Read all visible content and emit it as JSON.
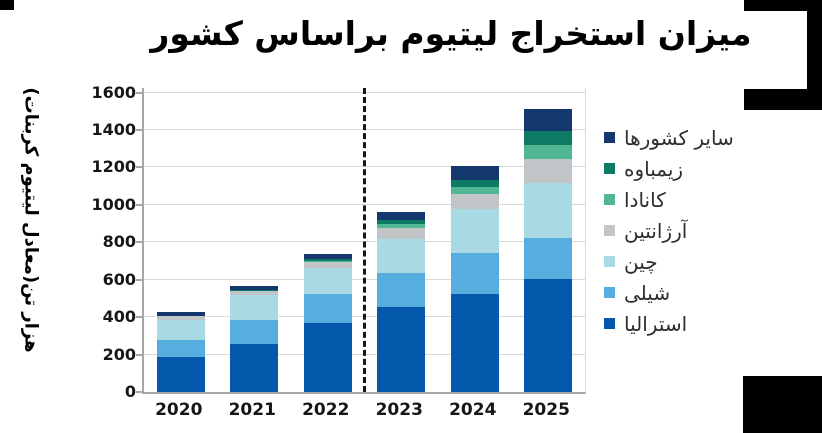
{
  "title": "میزان استخراج لیتیوم براساس کشور",
  "chart_data": {
    "type": "bar",
    "stacked": true,
    "title": "میزان استخراج لیتیوم براساس کشور",
    "xlabel": "",
    "ylabel": "هزار تن(معادل لیتیوم کربنات)",
    "categories": [
      "2020",
      "2021",
      "2022",
      "2023",
      "2024",
      "2025"
    ],
    "y_ticks": [
      0,
      200,
      400,
      600,
      800,
      1000,
      1200,
      1400,
      1600
    ],
    "ylim": [
      0,
      1600
    ],
    "grid": true,
    "legend_position": "right",
    "forecast_divider_between": [
      "2022",
      "2023"
    ],
    "series": [
      {
        "name": "استرالیا",
        "color": "#0559ad",
        "values": [
          185,
          255,
          370,
          455,
          525,
          605
        ]
      },
      {
        "name": "شیلی",
        "color": "#56aede",
        "values": [
          95,
          130,
          155,
          180,
          220,
          220
        ]
      },
      {
        "name": "چین",
        "color": "#a9dae4",
        "values": [
          105,
          135,
          135,
          185,
          235,
          290
        ]
      },
      {
        "name": "آرژانتین",
        "color": "#c1c5c8",
        "values": [
          20,
          20,
          35,
          55,
          80,
          130
        ]
      },
      {
        "name": "کانادا",
        "color": "#50b694",
        "values": [
          0,
          0,
          5,
          20,
          35,
          75
        ]
      },
      {
        "name": "زیمباوه",
        "color": "#0d7a64",
        "values": [
          0,
          5,
          10,
          25,
          35,
          75
        ]
      },
      {
        "name": "سایر کشورها",
        "color": "#14386e",
        "values": [
          25,
          20,
          30,
          40,
          80,
          115
        ]
      }
    ],
    "totals": [
      430,
      565,
      740,
      960,
      1210,
      1510
    ]
  },
  "colors": {
    "gridline": "#d9d9d9",
    "axis": "#a6a6a6",
    "divider": "#161616",
    "decor_block": "#000000"
  }
}
